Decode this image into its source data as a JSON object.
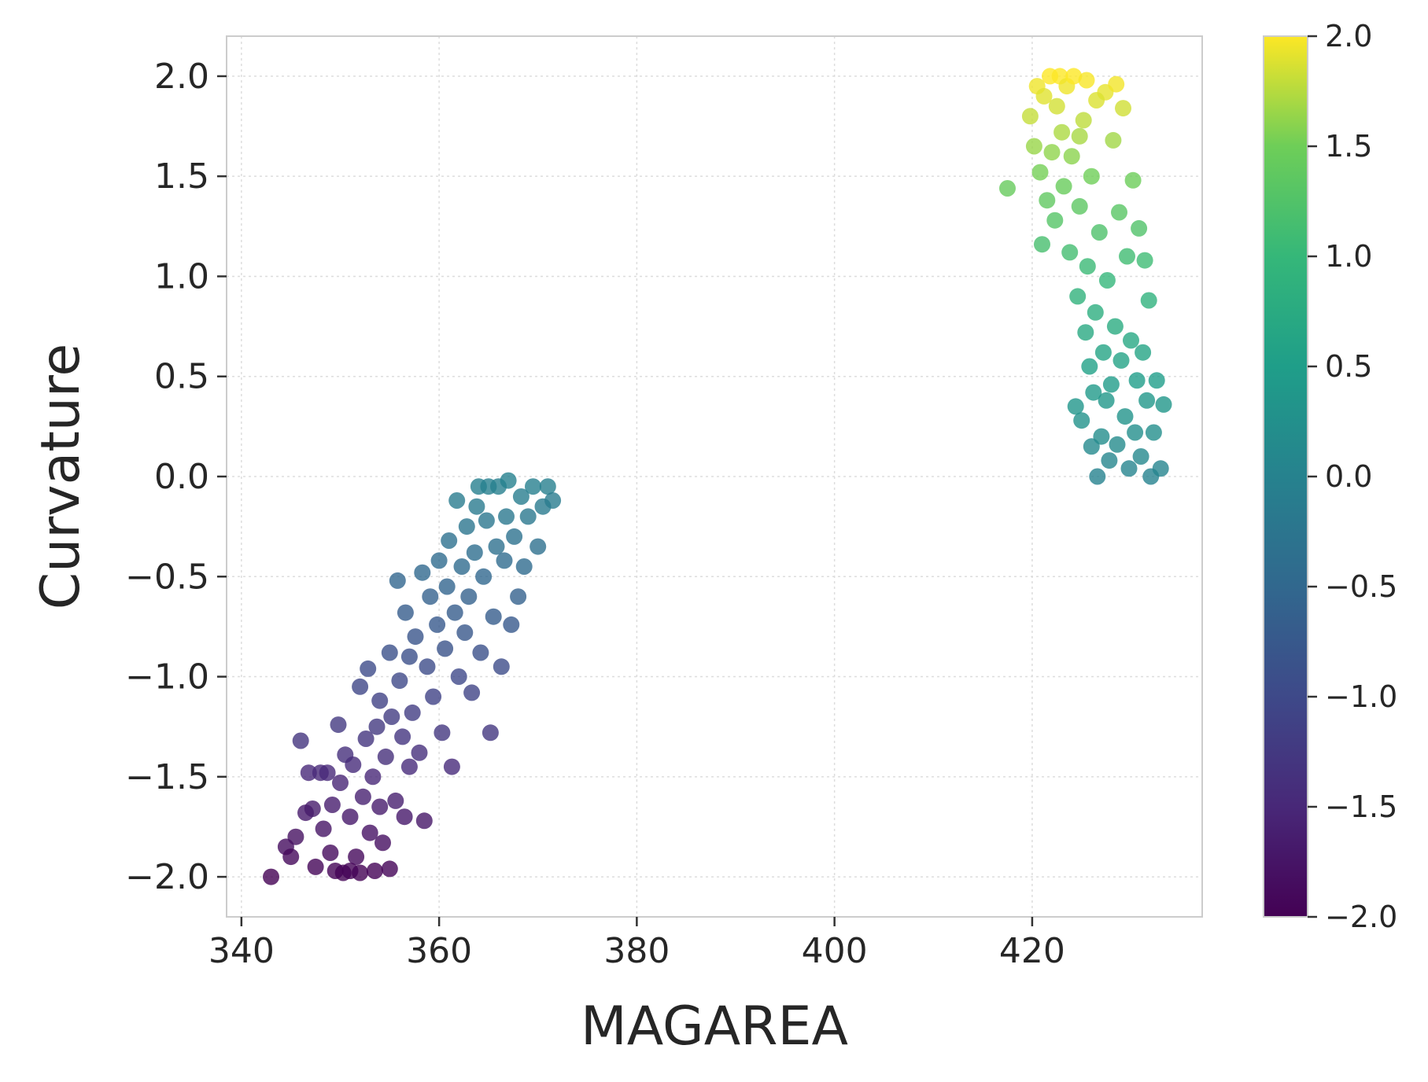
{
  "chart_data": {
    "type": "scatter",
    "title": "",
    "xlabel": "MAGAREA",
    "ylabel": "Curvature",
    "xlim": [
      338.5,
      437.2
    ],
    "ylim": [
      -2.2,
      2.2
    ],
    "xticks": [
      340,
      360,
      380,
      400,
      420
    ],
    "xtick_labels": [
      "340",
      "360",
      "380",
      "400",
      "420"
    ],
    "yticks": [
      2.0,
      1.5,
      1.0,
      0.5,
      0.0,
      -0.5,
      -1.0,
      -1.5,
      -2.0
    ],
    "ytick_labels": [
      "2.0",
      "1.5",
      "1.0",
      "0.5",
      "0.0",
      "−0.5",
      "−1.0",
      "−1.5",
      "−2.0"
    ],
    "grid": true,
    "colormap": "viridis",
    "colorbar": {
      "range": [
        -2.0,
        2.0
      ],
      "ticks": [
        2.0,
        1.5,
        1.0,
        0.5,
        0.0,
        -0.5,
        -1.0,
        -1.5,
        -2.0
      ],
      "tick_labels": [
        "2.0",
        "1.5",
        "1.0",
        "0.5",
        "0.0",
        "−0.5",
        "−1.0",
        "−1.5",
        "−2.0"
      ]
    },
    "point_color_encodes": "Curvature",
    "marker_opacity": 0.8,
    "points": [
      {
        "x": 343.0,
        "y": -2.0
      },
      {
        "x": 344.5,
        "y": -1.85
      },
      {
        "x": 345.0,
        "y": -1.9
      },
      {
        "x": 345.5,
        "y": -1.8
      },
      {
        "x": 346.0,
        "y": -1.32
      },
      {
        "x": 346.5,
        "y": -1.68
      },
      {
        "x": 346.8,
        "y": -1.48
      },
      {
        "x": 347.2,
        "y": -1.66
      },
      {
        "x": 347.5,
        "y": -1.95
      },
      {
        "x": 348.0,
        "y": -1.48
      },
      {
        "x": 348.3,
        "y": -1.76
      },
      {
        "x": 348.7,
        "y": -1.48
      },
      {
        "x": 349.0,
        "y": -1.88
      },
      {
        "x": 349.2,
        "y": -1.64
      },
      {
        "x": 349.8,
        "y": -1.24
      },
      {
        "x": 350.0,
        "y": -1.53
      },
      {
        "x": 350.3,
        "y": -1.98
      },
      {
        "x": 350.5,
        "y": -1.39
      },
      {
        "x": 351.0,
        "y": -1.7
      },
      {
        "x": 351.3,
        "y": -1.44
      },
      {
        "x": 351.6,
        "y": -1.9
      },
      {
        "x": 352.0,
        "y": -1.05
      },
      {
        "x": 352.3,
        "y": -1.6
      },
      {
        "x": 352.6,
        "y": -1.31
      },
      {
        "x": 352.8,
        "y": -0.96
      },
      {
        "x": 353.0,
        "y": -1.78
      },
      {
        "x": 353.3,
        "y": -1.5
      },
      {
        "x": 353.7,
        "y": -1.25
      },
      {
        "x": 354.0,
        "y": -1.12
      },
      {
        "x": 354.3,
        "y": -1.83
      },
      {
        "x": 354.6,
        "y": -1.4
      },
      {
        "x": 355.0,
        "y": -0.88
      },
      {
        "x": 355.2,
        "y": -1.2
      },
      {
        "x": 355.6,
        "y": -1.62
      },
      {
        "x": 355.8,
        "y": -0.52
      },
      {
        "x": 356.0,
        "y": -1.02
      },
      {
        "x": 356.3,
        "y": -1.3
      },
      {
        "x": 356.6,
        "y": -0.68
      },
      {
        "x": 357.0,
        "y": -0.9
      },
      {
        "x": 357.3,
        "y": -1.18
      },
      {
        "x": 357.6,
        "y": -0.8
      },
      {
        "x": 358.0,
        "y": -1.38
      },
      {
        "x": 358.3,
        "y": -0.48
      },
      {
        "x": 358.5,
        "y": -1.72
      },
      {
        "x": 358.8,
        "y": -0.95
      },
      {
        "x": 359.1,
        "y": -0.6
      },
      {
        "x": 359.4,
        "y": -1.1
      },
      {
        "x": 359.8,
        "y": -0.74
      },
      {
        "x": 360.0,
        "y": -0.42
      },
      {
        "x": 360.3,
        "y": -1.28
      },
      {
        "x": 360.6,
        "y": -0.86
      },
      {
        "x": 360.8,
        "y": -0.55
      },
      {
        "x": 361.0,
        "y": -0.32
      },
      {
        "x": 361.3,
        "y": -1.45
      },
      {
        "x": 361.6,
        "y": -0.68
      },
      {
        "x": 361.8,
        "y": -0.12
      },
      {
        "x": 362.0,
        "y": -1.0
      },
      {
        "x": 362.3,
        "y": -0.45
      },
      {
        "x": 362.6,
        "y": -0.78
      },
      {
        "x": 362.8,
        "y": -0.25
      },
      {
        "x": 363.0,
        "y": -0.6
      },
      {
        "x": 363.3,
        "y": -1.08
      },
      {
        "x": 363.6,
        "y": -0.38
      },
      {
        "x": 363.8,
        "y": -0.15
      },
      {
        "x": 364.0,
        "y": -0.05
      },
      {
        "x": 364.2,
        "y": -0.88
      },
      {
        "x": 364.5,
        "y": -0.5
      },
      {
        "x": 364.8,
        "y": -0.22
      },
      {
        "x": 365.0,
        "y": -0.05
      },
      {
        "x": 365.2,
        "y": -1.28
      },
      {
        "x": 365.5,
        "y": -0.7
      },
      {
        "x": 365.8,
        "y": -0.35
      },
      {
        "x": 366.0,
        "y": -0.05
      },
      {
        "x": 366.3,
        "y": -0.95
      },
      {
        "x": 366.6,
        "y": -0.42
      },
      {
        "x": 366.8,
        "y": -0.2
      },
      {
        "x": 367.0,
        "y": -0.02
      },
      {
        "x": 367.3,
        "y": -0.74
      },
      {
        "x": 367.6,
        "y": -0.3
      },
      {
        "x": 368.0,
        "y": -0.6
      },
      {
        "x": 368.3,
        "y": -0.1
      },
      {
        "x": 368.6,
        "y": -0.45
      },
      {
        "x": 369.0,
        "y": -0.2
      },
      {
        "x": 369.5,
        "y": -0.05
      },
      {
        "x": 370.0,
        "y": -0.35
      },
      {
        "x": 370.5,
        "y": -0.15
      },
      {
        "x": 371.0,
        "y": -0.05
      },
      {
        "x": 371.5,
        "y": -0.12
      },
      {
        "x": 352.0,
        "y": -1.98
      },
      {
        "x": 353.5,
        "y": -1.97
      },
      {
        "x": 355.0,
        "y": -1.96
      },
      {
        "x": 351.0,
        "y": -1.97
      },
      {
        "x": 349.5,
        "y": -1.97
      },
      {
        "x": 354.0,
        "y": -1.65
      },
      {
        "x": 356.5,
        "y": -1.7
      },
      {
        "x": 357.0,
        "y": -1.45
      },
      {
        "x": 417.5,
        "y": 1.44
      },
      {
        "x": 419.8,
        "y": 1.8
      },
      {
        "x": 420.2,
        "y": 1.65
      },
      {
        "x": 420.5,
        "y": 1.95
      },
      {
        "x": 420.8,
        "y": 1.52
      },
      {
        "x": 421.0,
        "y": 1.16
      },
      {
        "x": 421.2,
        "y": 1.9
      },
      {
        "x": 421.5,
        "y": 1.38
      },
      {
        "x": 421.8,
        "y": 2.0
      },
      {
        "x": 422.0,
        "y": 1.62
      },
      {
        "x": 422.3,
        "y": 1.28
      },
      {
        "x": 422.5,
        "y": 1.85
      },
      {
        "x": 422.8,
        "y": 2.0
      },
      {
        "x": 423.0,
        "y": 1.72
      },
      {
        "x": 423.2,
        "y": 1.45
      },
      {
        "x": 423.5,
        "y": 1.95
      },
      {
        "x": 423.8,
        "y": 1.12
      },
      {
        "x": 424.0,
        "y": 1.6
      },
      {
        "x": 424.2,
        "y": 2.0
      },
      {
        "x": 424.4,
        "y": 0.35
      },
      {
        "x": 424.6,
        "y": 0.9
      },
      {
        "x": 424.8,
        "y": 1.35
      },
      {
        "x": 425.0,
        "y": 0.28
      },
      {
        "x": 425.2,
        "y": 1.78
      },
      {
        "x": 425.4,
        "y": 0.72
      },
      {
        "x": 425.6,
        "y": 1.05
      },
      {
        "x": 425.8,
        "y": 0.55
      },
      {
        "x": 426.0,
        "y": 1.5
      },
      {
        "x": 426.2,
        "y": 0.42
      },
      {
        "x": 426.4,
        "y": 0.82
      },
      {
        "x": 426.6,
        "y": 0.0
      },
      {
        "x": 426.8,
        "y": 1.22
      },
      {
        "x": 427.0,
        "y": 0.2
      },
      {
        "x": 427.2,
        "y": 0.62
      },
      {
        "x": 427.4,
        "y": 1.92
      },
      {
        "x": 427.6,
        "y": 0.98
      },
      {
        "x": 427.8,
        "y": 0.08
      },
      {
        "x": 428.0,
        "y": 0.46
      },
      {
        "x": 428.2,
        "y": 1.68
      },
      {
        "x": 428.4,
        "y": 0.75
      },
      {
        "x": 428.6,
        "y": 0.16
      },
      {
        "x": 428.8,
        "y": 1.32
      },
      {
        "x": 429.0,
        "y": 0.58
      },
      {
        "x": 429.2,
        "y": 1.84
      },
      {
        "x": 429.4,
        "y": 0.3
      },
      {
        "x": 429.6,
        "y": 1.1
      },
      {
        "x": 429.8,
        "y": 0.04
      },
      {
        "x": 430.0,
        "y": 0.68
      },
      {
        "x": 430.2,
        "y": 1.48
      },
      {
        "x": 430.4,
        "y": 0.22
      },
      {
        "x": 430.6,
        "y": 0.48
      },
      {
        "x": 430.8,
        "y": 1.24
      },
      {
        "x": 431.0,
        "y": 0.1
      },
      {
        "x": 431.2,
        "y": 0.62
      },
      {
        "x": 431.4,
        "y": 1.08
      },
      {
        "x": 431.6,
        "y": 0.38
      },
      {
        "x": 431.8,
        "y": 0.88
      },
      {
        "x": 432.0,
        "y": 0.0
      },
      {
        "x": 432.3,
        "y": 0.22
      },
      {
        "x": 432.6,
        "y": 0.48
      },
      {
        "x": 433.0,
        "y": 0.04
      },
      {
        "x": 433.3,
        "y": 0.36
      },
      {
        "x": 428.5,
        "y": 1.96
      },
      {
        "x": 426.5,
        "y": 1.88
      },
      {
        "x": 425.5,
        "y": 1.98
      },
      {
        "x": 424.8,
        "y": 1.7
      },
      {
        "x": 426.0,
        "y": 0.15
      },
      {
        "x": 427.5,
        "y": 0.38
      }
    ]
  }
}
